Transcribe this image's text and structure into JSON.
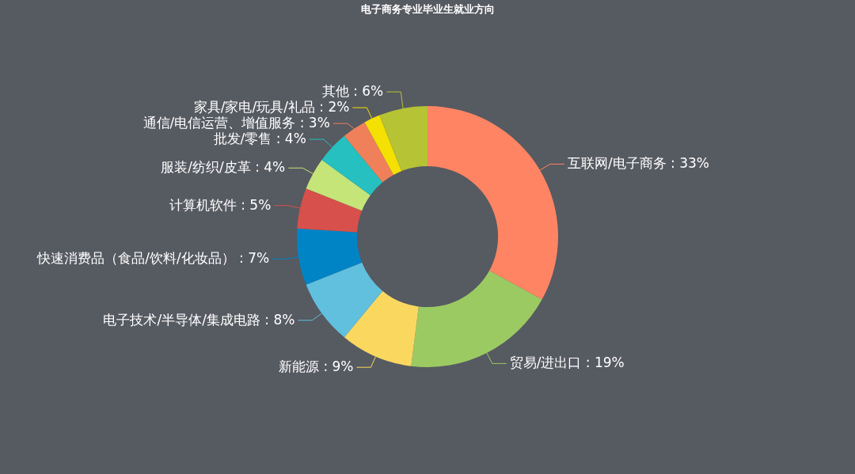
{
  "chart_data": {
    "type": "donut",
    "title": "电子商务专业毕业生就业方向",
    "categories": [
      "互联网/电子商务",
      "贸易/进出口",
      "新能源",
      "电子技术/半导体/集成电路",
      "快速消费品（食品/饮料/化妆品）",
      "计算机软件",
      "服装/纺织/皮革",
      "批发/零售",
      "通信/电信运营、增值服务",
      "家具/家电/玩具/礼品",
      "其他"
    ],
    "values": [
      33,
      19,
      9,
      8,
      7,
      5,
      4,
      4,
      3,
      2,
      6
    ],
    "colors": [
      "#fe8463",
      "#9bca63",
      "#fad860",
      "#60c0dd",
      "#0084c6",
      "#d7504b",
      "#c6e579",
      "#26c0c0",
      "#f0805a",
      "#f4e001",
      "#b5c334"
    ],
    "value_labels": [
      "33%",
      "19%",
      "9%",
      "8%",
      "7%",
      "5%",
      "4%",
      "4%",
      "3%",
      "2%",
      "6%"
    ]
  }
}
